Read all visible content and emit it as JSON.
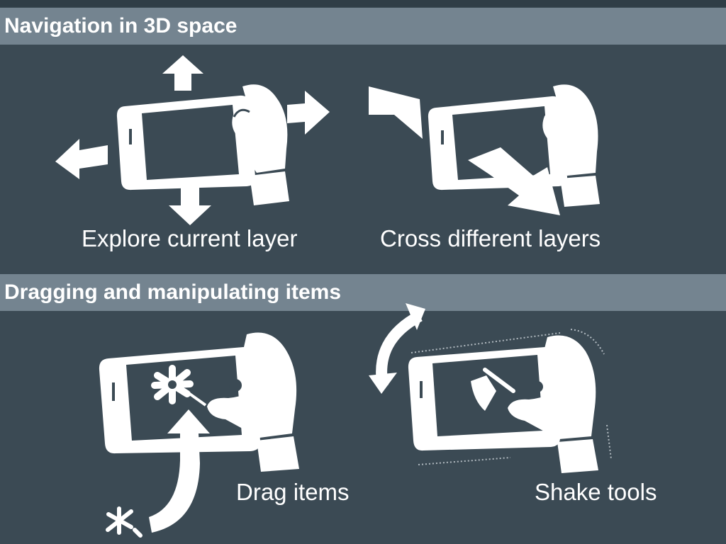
{
  "sections": [
    {
      "title": "Navigation in 3D space",
      "panels": [
        {
          "caption": "Explore current layer",
          "icon": "phone-pan-gesture-icon"
        },
        {
          "caption": "Cross different layers",
          "icon": "phone-tilt-gesture-icon"
        }
      ]
    },
    {
      "title": "Dragging and manipulating items",
      "panels": [
        {
          "caption": "Drag items",
          "icon": "phone-drag-gesture-icon"
        },
        {
          "caption": "Shake tools",
          "icon": "phone-shake-gesture-icon"
        }
      ]
    }
  ],
  "colors": {
    "background": "#3b4a54",
    "section_bar": "#748490",
    "foreground": "#ffffff"
  }
}
